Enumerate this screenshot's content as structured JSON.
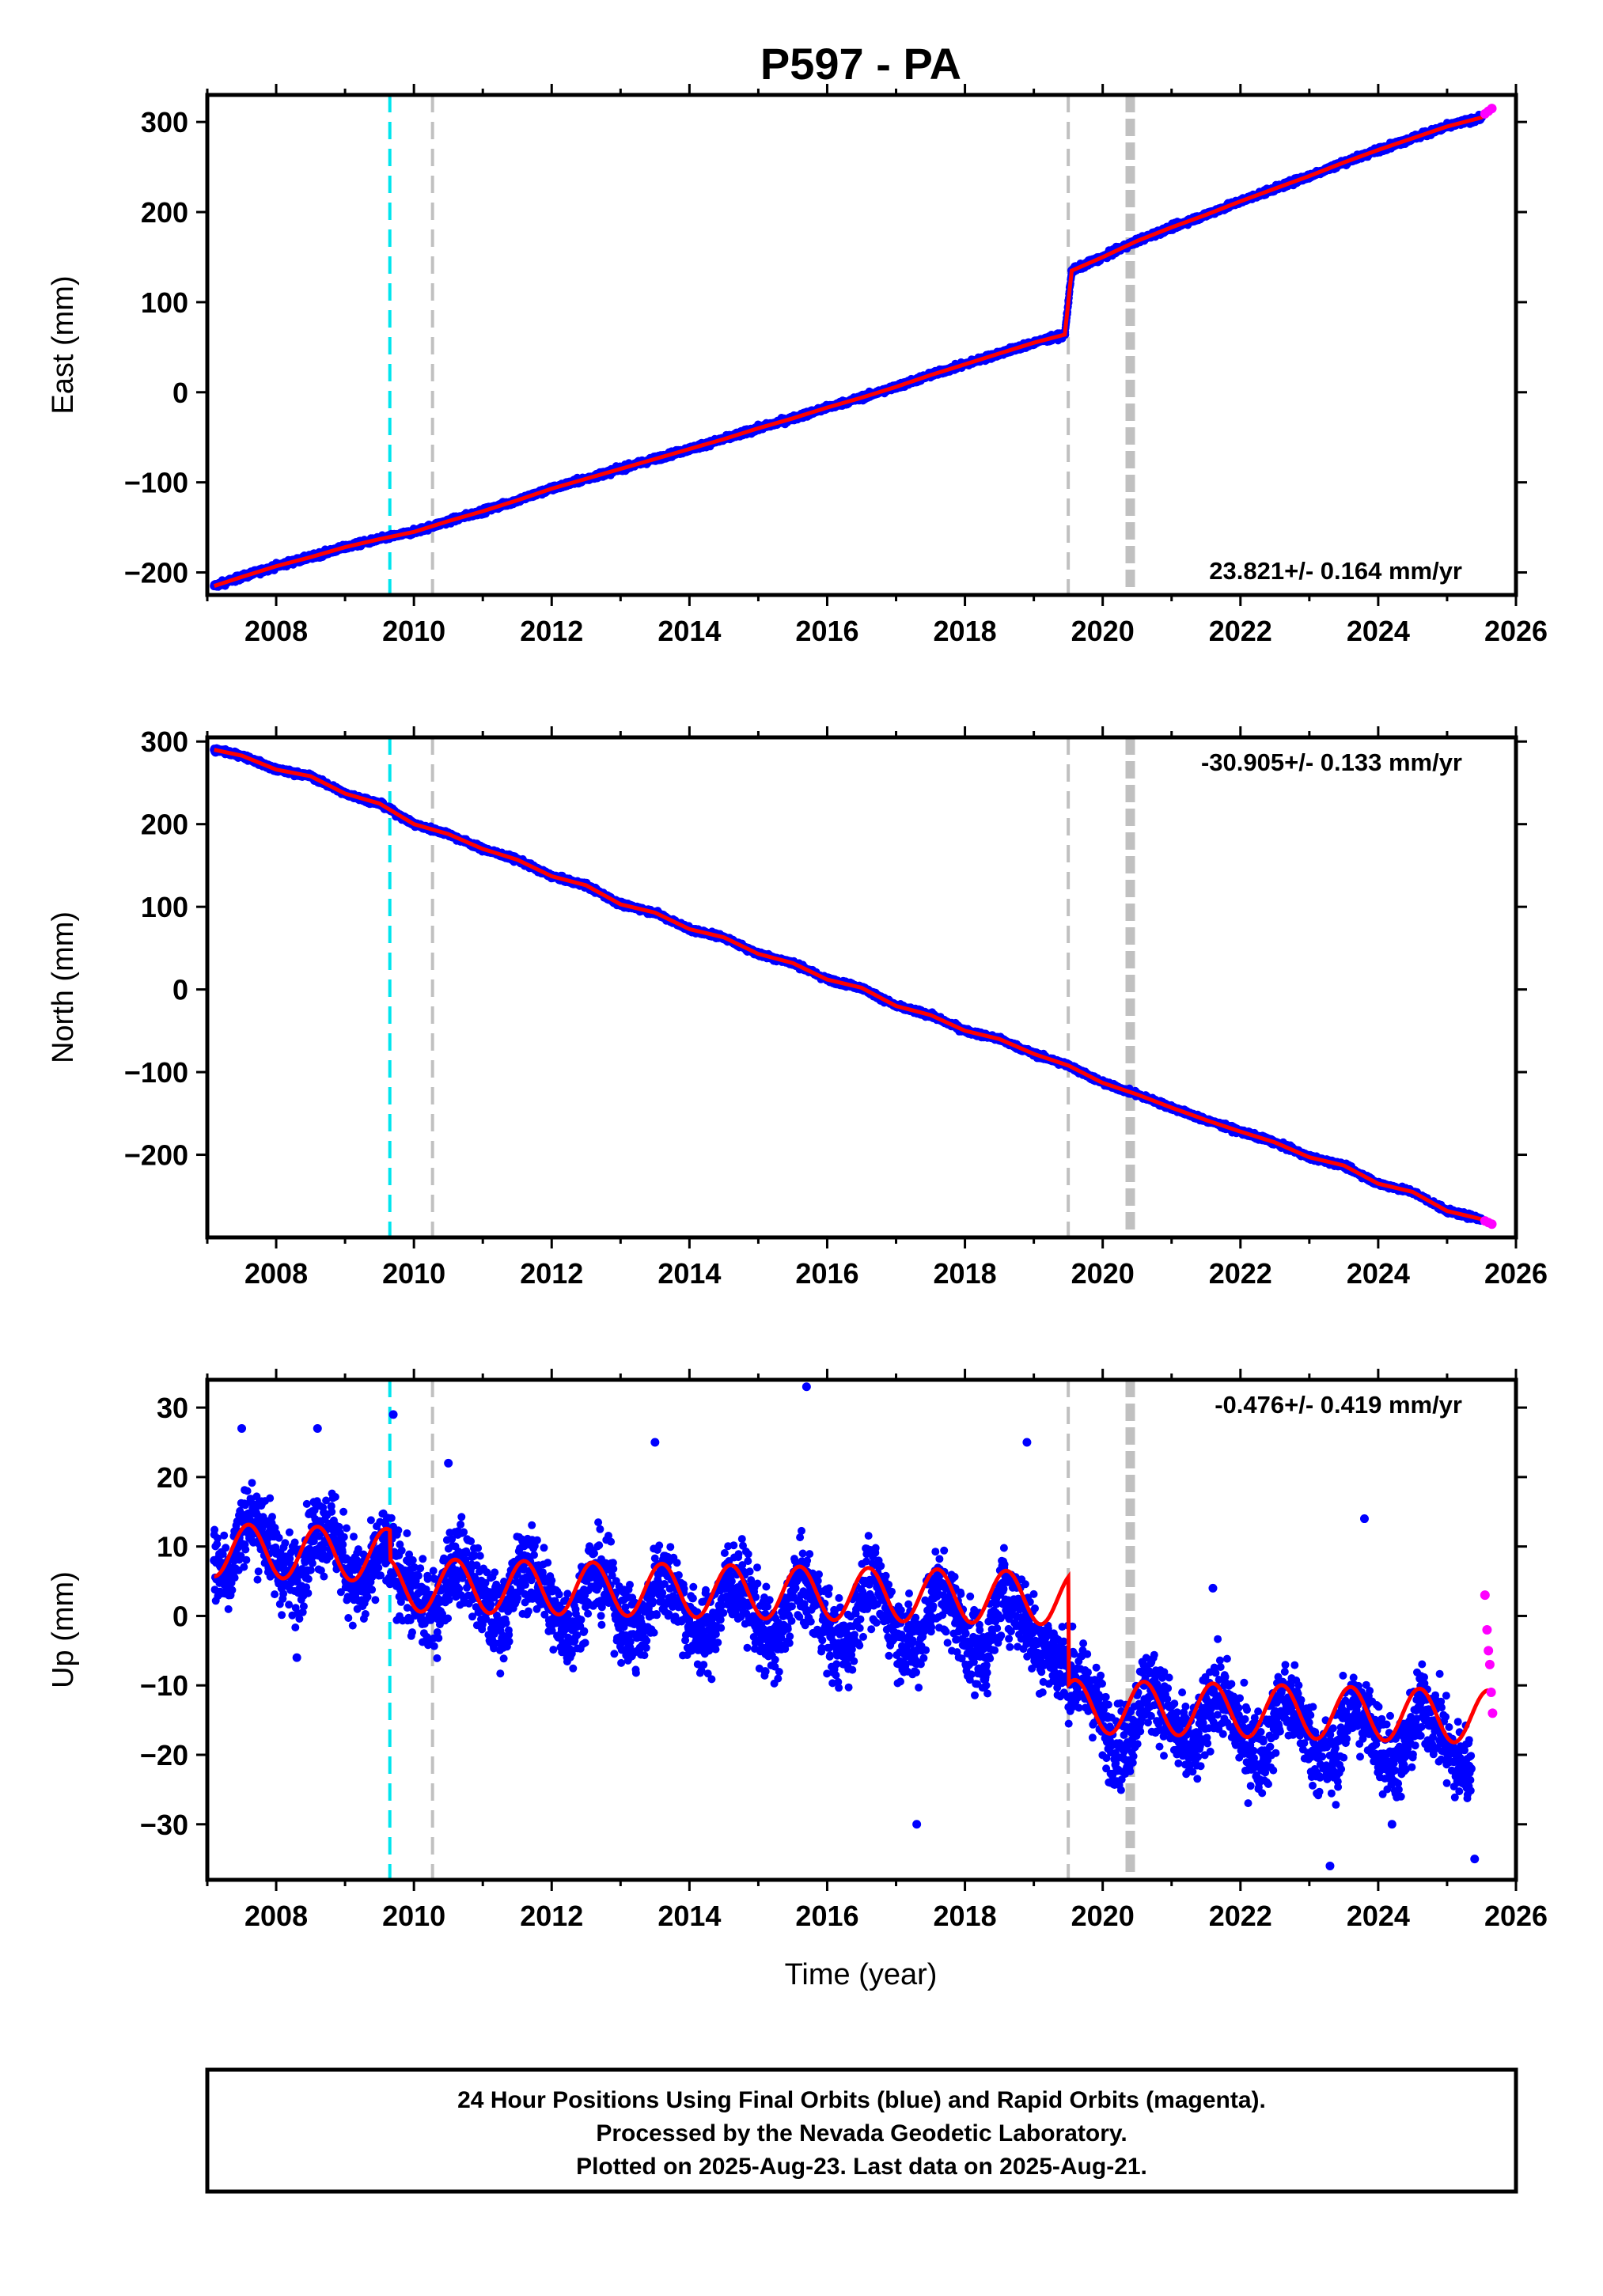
{
  "title": "P597 - PA",
  "xlabel": "Time (year)",
  "colors": {
    "final": "#0000ff",
    "rapid": "#ff00ff",
    "model": "#ff0000",
    "event_cyan": "#00e5ee",
    "event_gray": "#c0c0c0"
  },
  "footer": {
    "line1": "24 Hour Positions Using Final Orbits (blue) and Rapid Orbits (magenta).",
    "line2": "Processed by the Nevada Geodetic Laboratory.",
    "line3": "Plotted on 2025-Aug-23. Last data on 2025-Aug-21."
  },
  "chart_data": [
    {
      "type": "scatter",
      "component": "east",
      "ylabel": "East (mm)",
      "rate_text": "23.821+/- 0.164 mm/yr",
      "rate_position": "bottom-right",
      "xlim": [
        2007.0,
        2026.0
      ],
      "ylim": [
        -225,
        330
      ],
      "xticks": [
        2008,
        2010,
        2012,
        2014,
        2016,
        2018,
        2020,
        2022,
        2024,
        2026
      ],
      "yticks": [
        -200,
        -100,
        0,
        100,
        200,
        300
      ],
      "ytick_labels": [
        "−200",
        "−100",
        "0",
        "100",
        "200",
        "300"
      ],
      "series": [
        {
          "role": "final",
          "x": [
            2007.1,
            2007.5,
            2008.0,
            2008.5,
            2009.0,
            2009.5,
            2010.0,
            2010.5,
            2011.0,
            2011.5,
            2012.0,
            2012.5,
            2013.0,
            2013.5,
            2014.0,
            2014.5,
            2015.0,
            2015.5,
            2016.0,
            2016.5,
            2017.0,
            2017.5,
            2018.0,
            2018.5,
            2019.0,
            2019.45,
            2019.55,
            2020.0,
            2020.5,
            2021.0,
            2021.5,
            2022.0,
            2022.5,
            2023.0,
            2023.5,
            2024.0,
            2024.5,
            2025.0,
            2025.5
          ],
          "y": [
            -215,
            -205,
            -193,
            -183,
            -172,
            -163,
            -155,
            -143,
            -132,
            -120,
            -107,
            -96,
            -85,
            -74,
            -63,
            -52,
            -40,
            -29,
            -17,
            -6,
            6,
            19,
            31,
            43,
            55,
            64,
            135,
            150,
            168,
            183,
            197,
            212,
            226,
            240,
            255,
            269,
            282,
            295,
            305
          ]
        },
        {
          "role": "rapid",
          "x": [
            2025.55,
            2025.6,
            2025.65
          ],
          "y": [
            309,
            312,
            315
          ]
        }
      ]
    },
    {
      "type": "scatter",
      "component": "north",
      "ylabel": "North (mm)",
      "rate_text": "-30.905+/- 0.133 mm/yr",
      "rate_position": "top-right",
      "xlim": [
        2007.0,
        2026.0
      ],
      "ylim": [
        -300,
        305
      ],
      "xticks": [
        2008,
        2010,
        2012,
        2014,
        2016,
        2018,
        2020,
        2022,
        2024,
        2026
      ],
      "yticks": [
        -200,
        -100,
        0,
        100,
        200,
        300
      ],
      "ytick_labels": [
        "−200",
        "−100",
        "0",
        "100",
        "200",
        "300"
      ],
      "series": [
        {
          "role": "final",
          "x": [
            2007.1,
            2007.5,
            2008.0,
            2008.5,
            2009.0,
            2009.5,
            2010.0,
            2010.5,
            2011.0,
            2011.5,
            2012.0,
            2012.5,
            2013.0,
            2013.5,
            2014.0,
            2014.5,
            2015.0,
            2015.5,
            2016.0,
            2016.5,
            2017.0,
            2017.5,
            2018.0,
            2018.5,
            2019.0,
            2019.5,
            2020.0,
            2020.5,
            2021.0,
            2021.5,
            2022.0,
            2022.5,
            2023.0,
            2023.5,
            2024.0,
            2024.5,
            2025.0,
            2025.5
          ],
          "y": [
            290,
            283,
            266,
            258,
            237,
            225,
            200,
            188,
            170,
            157,
            137,
            126,
            103,
            93,
            73,
            63,
            43,
            32,
            12,
            2,
            -20,
            -31,
            -50,
            -60,
            -78,
            -92,
            -113,
            -127,
            -143,
            -158,
            -172,
            -185,
            -203,
            -213,
            -235,
            -245,
            -268,
            -278
          ]
        },
        {
          "role": "rapid",
          "x": [
            2025.55,
            2025.6,
            2025.65
          ],
          "y": [
            -280,
            -282,
            -284
          ]
        }
      ]
    },
    {
      "type": "scatter",
      "component": "up",
      "ylabel": "Up (mm)",
      "rate_text": "-0.476+/- 0.419 mm/yr",
      "rate_position": "top-right",
      "xlim": [
        2007.0,
        2026.0
      ],
      "ylim": [
        -38,
        34
      ],
      "xticks": [
        2008,
        2010,
        2012,
        2014,
        2016,
        2018,
        2020,
        2022,
        2024,
        2026
      ],
      "yticks": [
        -30,
        -20,
        -10,
        0,
        10,
        20,
        30
      ],
      "ytick_labels": [
        "−30",
        "−20",
        "−10",
        "0",
        "10",
        "20",
        "30"
      ],
      "series": [
        {
          "role": "final",
          "x": [
            2007.1,
            2007.3,
            2007.55,
            2007.8,
            2008.05,
            2008.3,
            2008.55,
            2008.8,
            2009.05,
            2009.3,
            2009.55,
            2009.75,
            2010.05,
            2010.3,
            2010.55,
            2010.8,
            2011.05,
            2011.3,
            2011.55,
            2011.8,
            2012.05,
            2012.3,
            2012.55,
            2012.8,
            2013.05,
            2013.3,
            2013.55,
            2013.8,
            2014.05,
            2014.3,
            2014.55,
            2014.8,
            2015.05,
            2015.3,
            2015.55,
            2015.8,
            2016.05,
            2016.3,
            2016.55,
            2016.8,
            2017.05,
            2017.3,
            2017.55,
            2017.8,
            2018.05,
            2018.3,
            2018.55,
            2018.8,
            2019.05,
            2019.3,
            2019.6,
            2019.85,
            2020.1,
            2020.35,
            2020.6,
            2020.85,
            2021.1,
            2021.35,
            2021.6,
            2021.85,
            2022.1,
            2022.35,
            2022.6,
            2022.85,
            2023.1,
            2023.35,
            2023.6,
            2023.85,
            2024.1,
            2024.35,
            2024.6,
            2024.85,
            2025.1,
            2025.35
          ],
          "y": [
            8,
            6,
            14,
            13,
            7,
            5,
            12,
            13,
            6,
            4,
            10,
            7,
            2,
            0,
            8,
            7,
            1,
            -1,
            7,
            6,
            0,
            -2,
            6,
            5,
            -1,
            -3,
            6,
            4,
            -2,
            -3,
            5,
            4,
            -2,
            -4,
            5,
            3,
            -3,
            -5,
            5,
            3,
            -3,
            -5,
            4,
            2,
            -4,
            -6,
            4,
            1,
            -4,
            -6,
            -9,
            -11,
            -18,
            -19,
            -10,
            -12,
            -18,
            -19,
            -11,
            -13,
            -19,
            -20,
            -12,
            -14,
            -20,
            -21,
            -13,
            -15,
            -20,
            -21,
            -13,
            -15,
            -21,
            -22
          ]
        },
        {
          "role": "outliers",
          "x": [
            2007.5,
            2008.6,
            2009.7,
            2010.5,
            2013.5,
            2015.7,
            2017.3,
            2018.9,
            2021.6,
            2023.3,
            2023.8,
            2024.2,
            2025.4,
            2008.3,
            2015.1
          ],
          "y": [
            27,
            27,
            29,
            22,
            25,
            33,
            -30,
            25,
            4,
            -36,
            14,
            -30,
            -35,
            -6,
            -8
          ]
        },
        {
          "role": "rapid",
          "x": [
            2025.55,
            2025.58,
            2025.6,
            2025.62,
            2025.64,
            2025.66
          ],
          "y": [
            3,
            -2,
            -5,
            -7,
            -11,
            -14
          ]
        }
      ]
    }
  ]
}
